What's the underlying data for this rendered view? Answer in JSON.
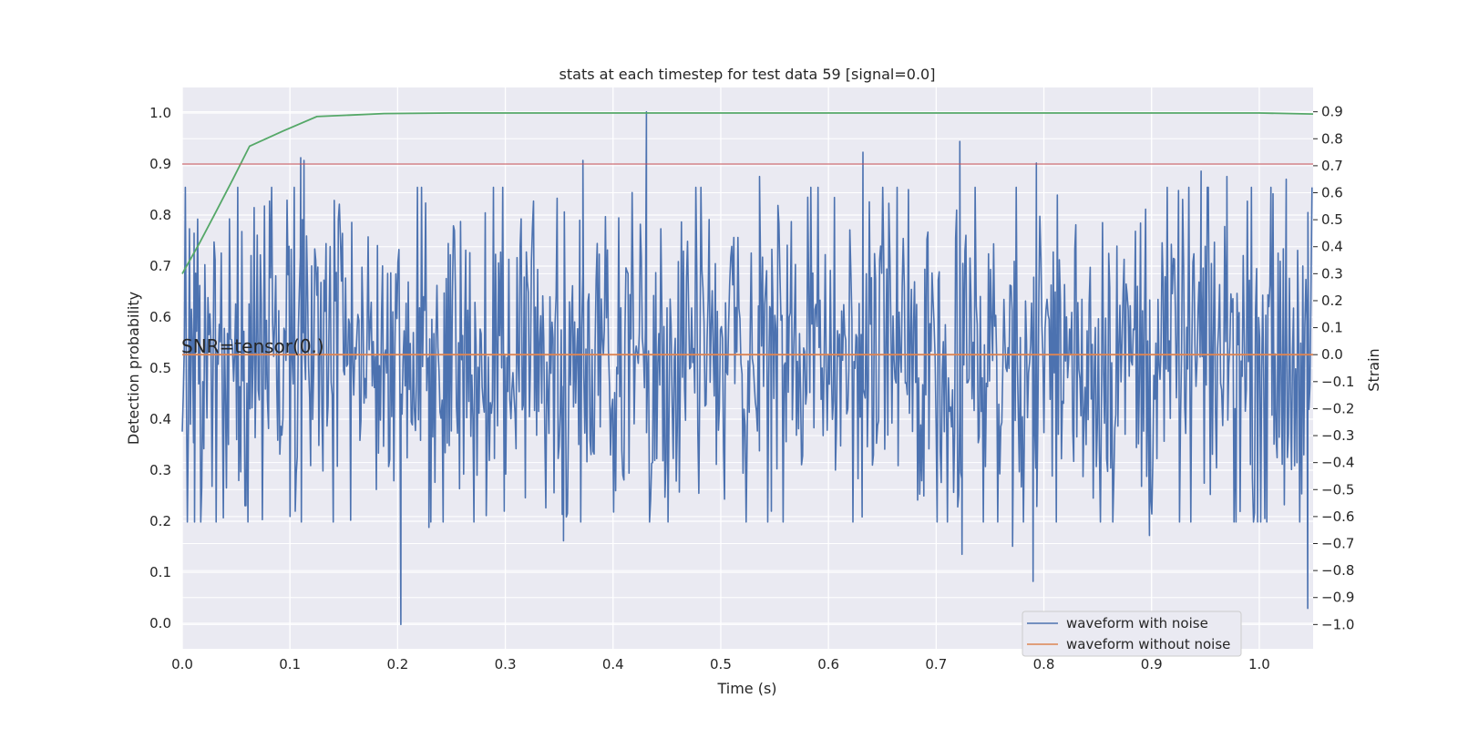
{
  "chart_data": {
    "type": "line",
    "title": "stats at each timestep for test data 59 [signal=0.0]",
    "xlabel": "Time (s)",
    "ylabel": "Detection probability",
    "ylabel_right": "Strain",
    "annotation": "SNR=tensor(0.)",
    "xlim": [
      0.0,
      1.05
    ],
    "ylim": [
      -0.05,
      1.05
    ],
    "ylim_right": [
      -1.09,
      0.99
    ],
    "x_ticks": [
      "0.0",
      "0.1",
      "0.2",
      "0.3",
      "0.4",
      "0.5",
      "0.6",
      "0.7",
      "0.8",
      "0.9",
      "1.0"
    ],
    "y_ticks": [
      "0.0",
      "0.1",
      "0.2",
      "0.3",
      "0.4",
      "0.5",
      "0.6",
      "0.7",
      "0.8",
      "0.9",
      "1.0"
    ],
    "y_right_ticks": [
      "−1.0",
      "−0.9",
      "−0.8",
      "−0.7",
      "−0.6",
      "−0.5",
      "−0.4",
      "−0.3",
      "−0.2",
      "−0.1",
      "0.0",
      "0.1",
      "0.2",
      "0.3",
      "0.4",
      "0.5",
      "0.6",
      "0.7",
      "0.8",
      "0.9"
    ],
    "grid": true,
    "legend_position": "lower-right",
    "colors": {
      "background": "#eaeaf2",
      "grid": "#ffffff",
      "with_noise": "#4c72b0",
      "without_noise": "#dd8452",
      "probability": "#55a868",
      "threshold": "#c44e52"
    },
    "series": [
      {
        "name": "waveform with noise",
        "axis": "right",
        "x_start": 0.0,
        "x_end": 1.049,
        "peaks": [
          [
            0.011,
            0.45
          ],
          [
            0.11,
            0.73
          ],
          [
            0.113,
            0.72
          ],
          [
            0.203,
            -1.0
          ],
          [
            0.229,
            -0.64
          ],
          [
            0.299,
            -0.58
          ],
          [
            0.354,
            -0.69
          ],
          [
            0.372,
            0.72
          ],
          [
            0.431,
            0.9
          ],
          [
            0.536,
            0.66
          ],
          [
            0.547,
            -0.58
          ],
          [
            0.632,
            0.75
          ],
          [
            0.722,
            0.79
          ],
          [
            0.724,
            -0.74
          ],
          [
            0.771,
            -0.71
          ],
          [
            0.79,
            -0.84
          ],
          [
            0.793,
            0.71
          ],
          [
            0.898,
            -0.67
          ],
          [
            0.946,
            0.68
          ],
          [
            0.97,
            0.66
          ],
          [
            1.025,
            0.65
          ],
          [
            1.035,
            -0.4
          ],
          [
            1.045,
            -0.94
          ],
          [
            1.048,
            0.21
          ]
        ]
      },
      {
        "name": "waveform without noise",
        "axis": "right",
        "x": [
          0.0,
          1.05
        ],
        "values": [
          0.0,
          0.0
        ]
      },
      {
        "axis": "left",
        "x": [
          0.0,
          0.016,
          0.031,
          0.047,
          0.0625,
          0.094,
          0.125,
          0.1875,
          0.25,
          0.5,
          1.0,
          1.05
        ],
        "values": [
          0.685,
          0.745,
          0.805,
          0.87,
          0.935,
          0.965,
          0.993,
          0.999,
          1.0,
          1.0,
          1.0,
          0.998
        ]
      },
      {
        "axis": "left",
        "x": [
          0.0,
          1.05
        ],
        "values": [
          0.9,
          0.9
        ]
      }
    ]
  }
}
